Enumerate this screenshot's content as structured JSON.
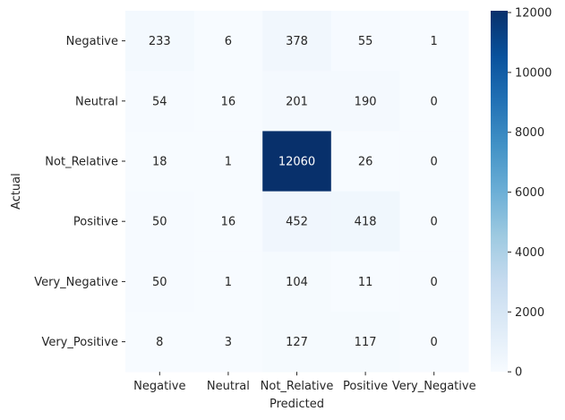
{
  "chart_data": {
    "type": "heatmap",
    "xlabel": "Predicted",
    "ylabel": "Actual",
    "x_categories": [
      "Negative",
      "Neutral",
      "Not_Relative",
      "Positive",
      "Very_Negative"
    ],
    "y_categories": [
      "Negative",
      "Neutral",
      "Not_Relative",
      "Positive",
      "Very_Negative",
      "Very_Positive"
    ],
    "values": [
      [
        233,
        6,
        378,
        55,
        1
      ],
      [
        54,
        16,
        201,
        190,
        0
      ],
      [
        18,
        1,
        12060,
        26,
        0
      ],
      [
        50,
        16,
        452,
        418,
        0
      ],
      [
        50,
        1,
        104,
        11,
        0
      ],
      [
        8,
        3,
        127,
        117,
        0
      ]
    ],
    "colormap": "Blues",
    "color_range": [
      0,
      12060
    ],
    "colorbar_ticks": [
      0,
      2000,
      4000,
      6000,
      8000,
      10000,
      12000
    ],
    "annotate": true
  }
}
